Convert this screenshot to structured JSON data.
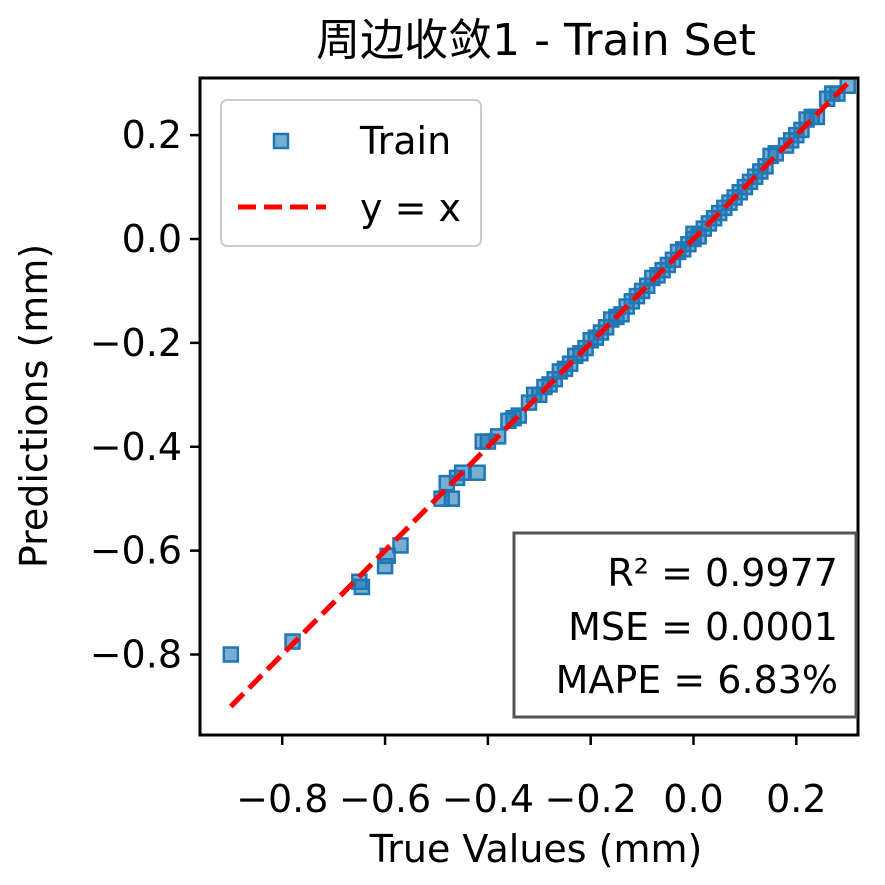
{
  "chart_data": {
    "type": "scatter",
    "title": "周边收敛1 - Train Set",
    "xlabel": "True Values (mm)",
    "ylabel": "Predictions (mm)",
    "xlim": [
      -0.96,
      0.32
    ],
    "ylim": [
      -0.955,
      0.31
    ],
    "xticks": [
      -0.8,
      -0.6,
      -0.4,
      -0.2,
      0.0,
      0.2
    ],
    "yticks": [
      -0.8,
      -0.6,
      -0.4,
      -0.2,
      0.0,
      0.2
    ],
    "xtick_labels": [
      "−0.8",
      "−0.6",
      "−0.4",
      "−0.2",
      "0.0",
      "0.2"
    ],
    "ytick_labels": [
      "−0.8",
      "−0.6",
      "−0.4",
      "−0.2",
      "0.0",
      "0.2"
    ],
    "grid": false,
    "legend_position": "top-left",
    "legend": [
      {
        "label": "Train",
        "marker": "square",
        "color": "#1f77b4"
      },
      {
        "label": "y = x",
        "marker": "dashed-line",
        "color": "#ff0000"
      }
    ],
    "reference_line": {
      "name": "y = x",
      "x": [
        -0.9,
        0.3
      ],
      "y": [
        -0.9,
        0.3
      ],
      "color": "#ff0000"
    },
    "stats_box": {
      "position": "bottom-right",
      "lines": [
        "R² = 0.9977",
        "MSE = 0.0001",
        "MAPE = 6.83%"
      ]
    },
    "series": [
      {
        "name": "Train",
        "color": "#1f77b4",
        "points": [
          [
            -0.9,
            -0.8
          ],
          [
            -0.78,
            -0.775
          ],
          [
            -0.645,
            -0.67
          ],
          [
            -0.65,
            -0.66
          ],
          [
            -0.6,
            -0.63
          ],
          [
            -0.595,
            -0.61
          ],
          [
            -0.57,
            -0.59
          ],
          [
            -0.49,
            -0.5
          ],
          [
            -0.47,
            -0.5
          ],
          [
            -0.48,
            -0.47
          ],
          [
            -0.46,
            -0.46
          ],
          [
            -0.45,
            -0.45
          ],
          [
            -0.42,
            -0.45
          ],
          [
            -0.41,
            -0.39
          ],
          [
            -0.4,
            -0.39
          ],
          [
            -0.38,
            -0.38
          ],
          [
            -0.36,
            -0.35
          ],
          [
            -0.35,
            -0.345
          ],
          [
            -0.34,
            -0.34
          ],
          [
            -0.32,
            -0.315
          ],
          [
            -0.31,
            -0.3
          ],
          [
            -0.3,
            -0.3
          ],
          [
            -0.29,
            -0.285
          ],
          [
            -0.28,
            -0.28
          ],
          [
            -0.27,
            -0.27
          ],
          [
            -0.26,
            -0.255
          ],
          [
            -0.25,
            -0.25
          ],
          [
            -0.24,
            -0.24
          ],
          [
            -0.23,
            -0.225
          ],
          [
            -0.22,
            -0.22
          ],
          [
            -0.21,
            -0.21
          ],
          [
            -0.2,
            -0.195
          ],
          [
            -0.19,
            -0.19
          ],
          [
            -0.18,
            -0.18
          ],
          [
            -0.17,
            -0.17
          ],
          [
            -0.16,
            -0.155
          ],
          [
            -0.15,
            -0.15
          ],
          [
            -0.14,
            -0.145
          ],
          [
            -0.13,
            -0.13
          ],
          [
            -0.12,
            -0.12
          ],
          [
            -0.11,
            -0.11
          ],
          [
            -0.1,
            -0.1
          ],
          [
            -0.09,
            -0.09
          ],
          [
            -0.08,
            -0.075
          ],
          [
            -0.07,
            -0.07
          ],
          [
            -0.06,
            -0.06
          ],
          [
            -0.05,
            -0.05
          ],
          [
            -0.04,
            -0.04
          ],
          [
            -0.03,
            -0.025
          ],
          [
            -0.02,
            -0.02
          ],
          [
            -0.01,
            -0.01
          ],
          [
            0.0,
            0.0
          ],
          [
            0.0,
            0.01
          ],
          [
            0.01,
            0.005
          ],
          [
            0.02,
            0.02
          ],
          [
            0.03,
            0.03
          ],
          [
            0.04,
            0.04
          ],
          [
            0.05,
            0.05
          ],
          [
            0.06,
            0.06
          ],
          [
            0.07,
            0.07
          ],
          [
            0.08,
            0.08
          ],
          [
            0.09,
            0.09
          ],
          [
            0.1,
            0.1
          ],
          [
            0.11,
            0.11
          ],
          [
            0.12,
            0.12
          ],
          [
            0.13,
            0.13
          ],
          [
            0.14,
            0.14
          ],
          [
            0.15,
            0.16
          ],
          [
            0.16,
            0.165
          ],
          [
            0.18,
            0.18
          ],
          [
            0.19,
            0.19
          ],
          [
            0.2,
            0.2
          ],
          [
            0.21,
            0.21
          ],
          [
            0.22,
            0.23
          ],
          [
            0.23,
            0.235
          ],
          [
            0.24,
            0.235
          ],
          [
            0.26,
            0.27
          ],
          [
            0.27,
            0.28
          ],
          [
            0.28,
            0.28
          ],
          [
            0.3,
            0.295
          ]
        ]
      }
    ]
  }
}
